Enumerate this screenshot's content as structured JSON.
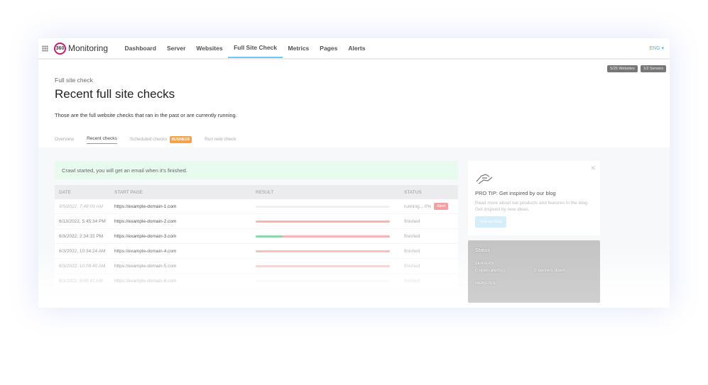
{
  "nav": {
    "logo": "Monitoring",
    "logo_mark": "360",
    "items": [
      "Dashboard",
      "Server",
      "Websites",
      "Full Site Check",
      "Metrics",
      "Pages",
      "Alerts"
    ],
    "active": "Full Site Check",
    "lang": "ENG ▾"
  },
  "badges": [
    "5/25 Websites",
    "1/2 Servers"
  ],
  "header": {
    "breadcrumb": "Full site check",
    "title": "Recent full site checks",
    "description": "Those are the full website checks that ran in the past or are currently running."
  },
  "tabs": {
    "overview": "Overview",
    "recent": "Recent checks",
    "scheduled": "Scheduled checks",
    "business_badge": "BUSINESS",
    "run": "Run new check"
  },
  "alert": "Crawl started, you will get an email when it's finished.",
  "table": {
    "headers": [
      "DATE",
      "START PAGE",
      "RESULT",
      "STATUS"
    ],
    "rows": [
      {
        "date": "9/5/2022, 7:48:09 AM",
        "page": "https://example-domain-1.com",
        "ok": 0,
        "fail": 0,
        "status": "running... 0%",
        "abort": "Abort"
      },
      {
        "date": "6/13/2022, 5:45:34 PM",
        "page": "https://example-domain-2.com",
        "ok": 0,
        "fail": 100,
        "status": "finished"
      },
      {
        "date": "6/3/2022, 2:34:15 PM",
        "page": "https://example-domain-3.com",
        "ok": 20,
        "fail": 80,
        "status": "finished"
      },
      {
        "date": "6/3/2022, 10:34:24 AM",
        "page": "https://example-domain-4.com",
        "ok": 0,
        "fail": 100,
        "status": "finished"
      },
      {
        "date": "6/3/2022, 10:09:40 AM",
        "page": "https://example-domain-5.com",
        "ok": 0,
        "fail": 100,
        "status": "finished"
      },
      {
        "date": "6/3/2022, 9:59:42 AM",
        "page": "https://example-domain-6.com",
        "ok": 0,
        "fail": 0,
        "status": "finished"
      }
    ]
  },
  "colors": {
    "ok": "#8fd6a6",
    "fail": "#f5b5b5",
    "accent": "#4fc3f7"
  },
  "tip": {
    "title": "PRO TIP: Get inspired by our blog",
    "text": "Read more about our products and features in the blog. Get inspired by new ideas.",
    "button": "Visit our blog"
  },
  "status": {
    "title": "Status",
    "servers_label": "SERVERS",
    "open_alerts": "0 open alert(s)",
    "servers_down": "0 servers down",
    "websites_label": "WEBSITES"
  }
}
